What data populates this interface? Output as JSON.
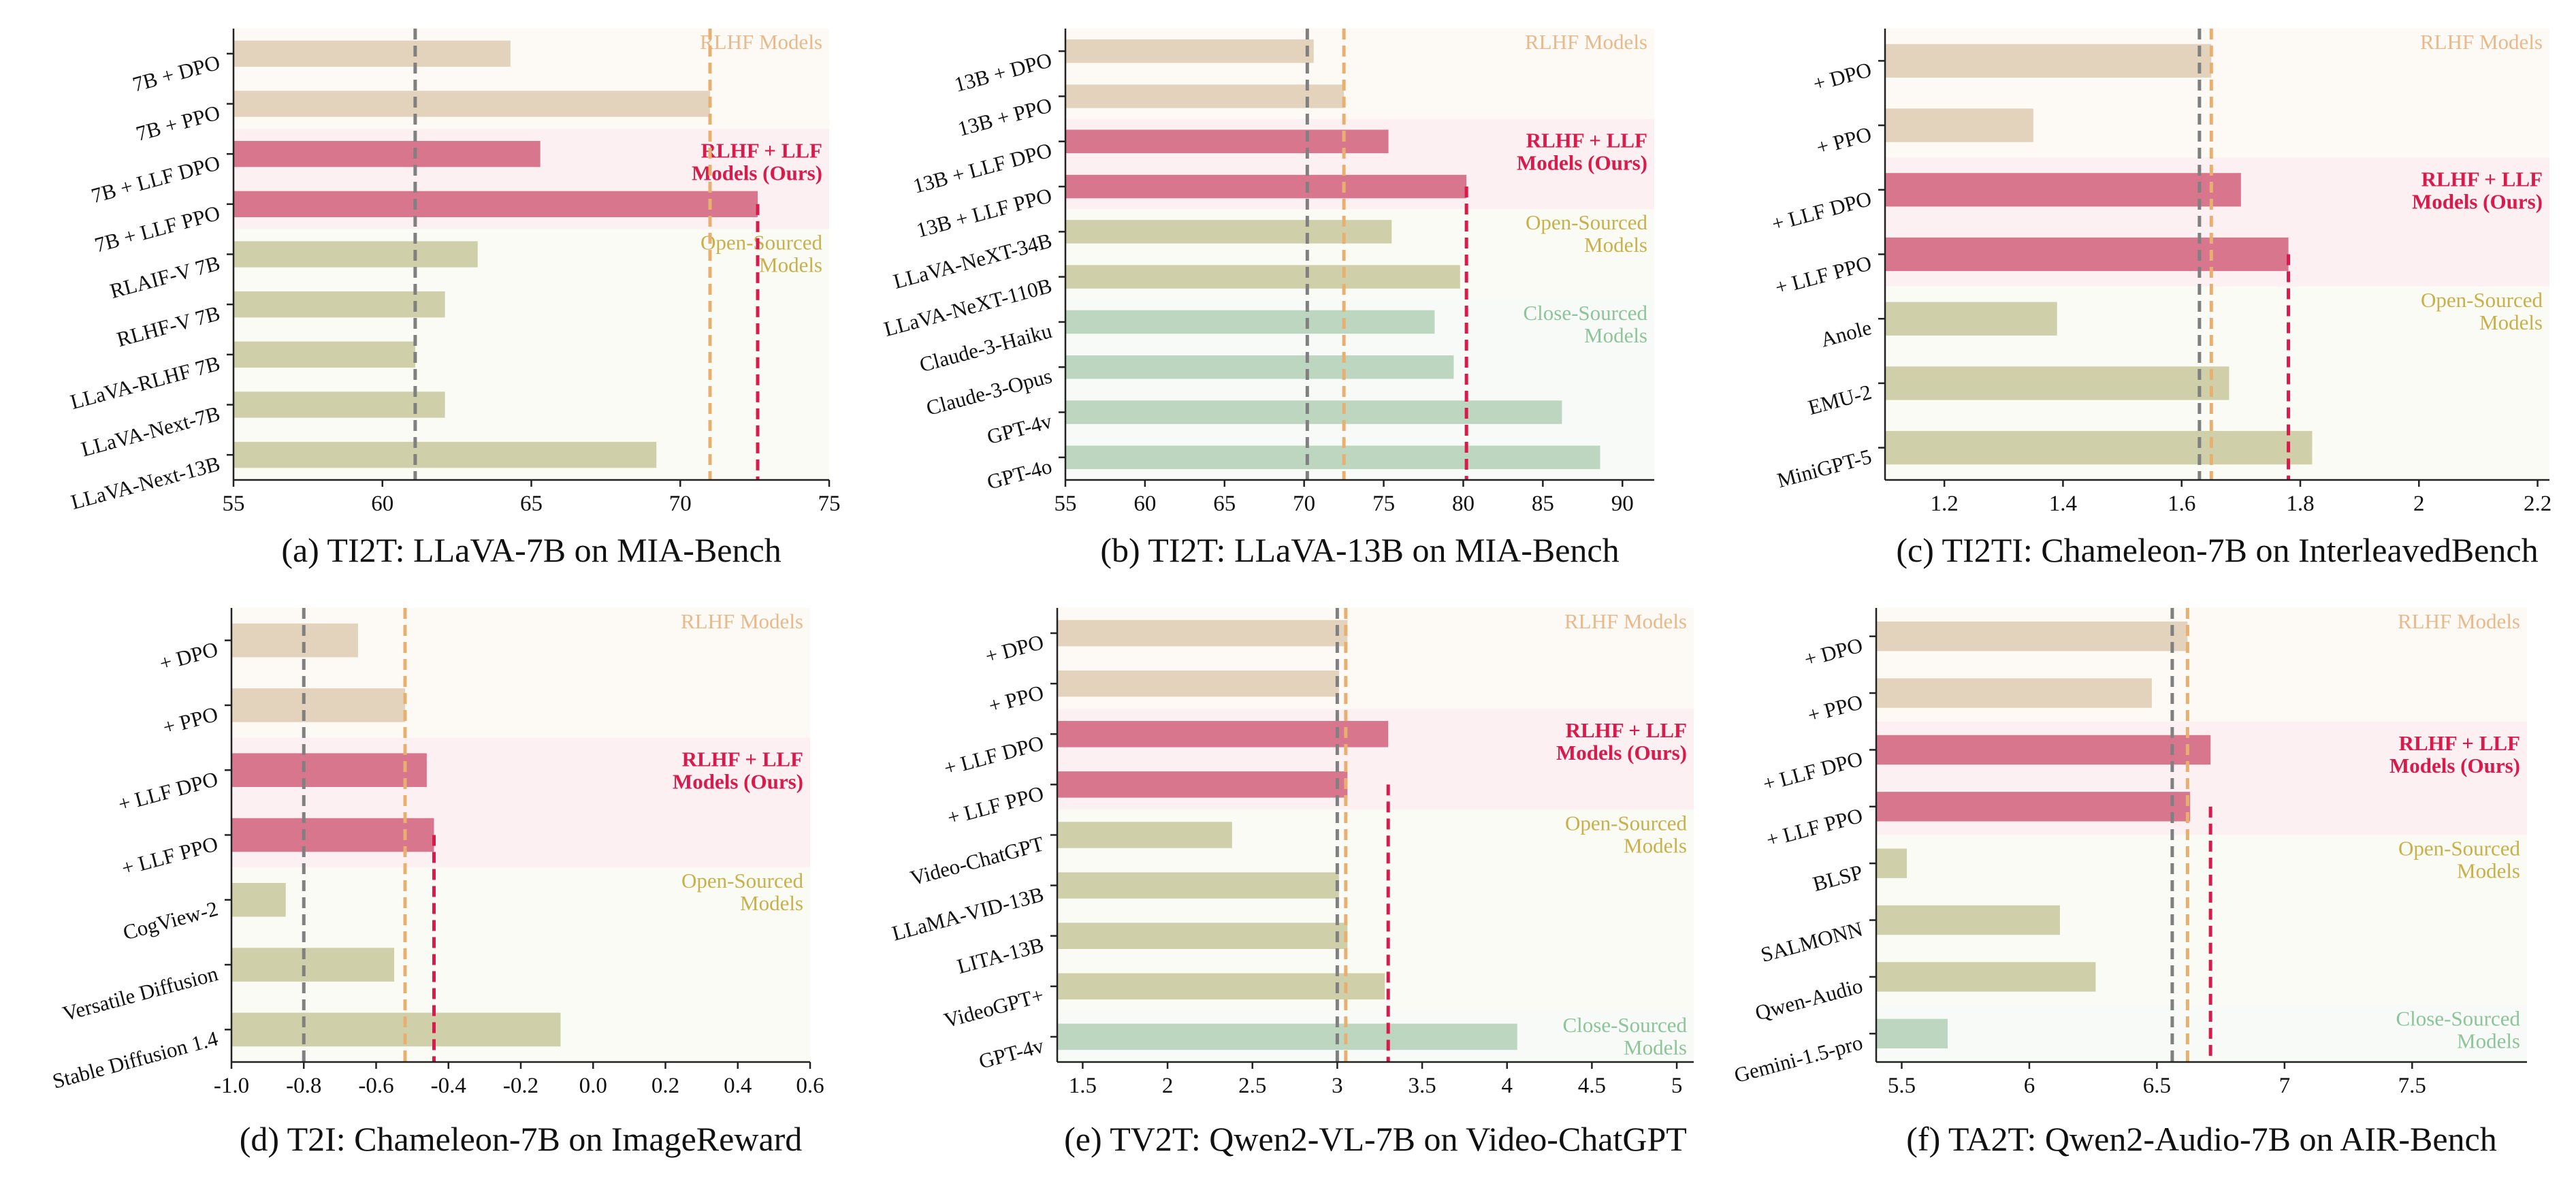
{
  "colors": {
    "rlhf": "#e3d3bd",
    "llf": "#d8768d",
    "open": "#cfcfaa",
    "close": "#bcd6bf",
    "rlhf_text": "#e8b98a",
    "llf_text": "#d81b4a",
    "open_text": "#c8b04a",
    "close_text": "#8ec49a",
    "ref_line": "#808080"
  },
  "chart_data": [
    {
      "type": "bar",
      "orientation": "horizontal",
      "caption": "(a) TI2T: LLaVA-7B on MIA-Bench",
      "categories": [
        "7B + DPO",
        "7B + PPO",
        "7B + LLF DPO",
        "7B + LLF PPO",
        "RLAIF-V 7B",
        "RLHF-V 7B",
        "LLaVA-RLHF 7B",
        "LLaVA-Next-7B",
        "LLaVA-Next-13B"
      ],
      "values": [
        64.3,
        71.0,
        65.3,
        72.6,
        63.2,
        62.1,
        61.1,
        62.1,
        69.2
      ],
      "groups": [
        "rlhf",
        "rlhf",
        "llf",
        "llf",
        "open",
        "open",
        "open",
        "open",
        "open"
      ],
      "xlim": [
        55,
        75
      ],
      "xticks": [
        55,
        60,
        65,
        70,
        75
      ],
      "reference_lines": [
        {
          "value": 61.1,
          "group": "ref"
        },
        {
          "value": 71.0,
          "group": "rlhf"
        },
        {
          "value": 72.6,
          "group": "llf"
        }
      ],
      "regions": [
        {
          "group": "rlhf",
          "label": "RLHF Models"
        },
        {
          "group": "llf",
          "label": "RLHF + LLF\nModels (Ours)"
        },
        {
          "group": "open",
          "label": "Open-Sourced\nModels"
        }
      ]
    },
    {
      "type": "bar",
      "orientation": "horizontal",
      "caption": "(b) TI2T: LLaVA-13B on MIA-Bench",
      "categories": [
        "13B + DPO",
        "13B + PPO",
        "13B + LLF DPO",
        "13B + LLF PPO",
        "LLaVA-NeXT-34B",
        "LLaVA-NeXT-110B",
        "Claude-3-Haiku",
        "Claude-3-Opus",
        "GPT-4v",
        "GPT-4o"
      ],
      "values": [
        70.6,
        72.5,
        75.3,
        80.2,
        75.5,
        79.8,
        78.2,
        79.4,
        86.2,
        88.6
      ],
      "groups": [
        "rlhf",
        "rlhf",
        "llf",
        "llf",
        "open",
        "open",
        "close",
        "close",
        "close",
        "close"
      ],
      "xlim": [
        55,
        92
      ],
      "xticks": [
        55,
        60,
        65,
        70,
        75,
        80,
        85,
        90
      ],
      "reference_lines": [
        {
          "value": 70.2,
          "group": "ref"
        },
        {
          "value": 72.5,
          "group": "rlhf"
        },
        {
          "value": 80.2,
          "group": "llf"
        }
      ],
      "regions": [
        {
          "group": "rlhf",
          "label": "RLHF Models"
        },
        {
          "group": "llf",
          "label": "RLHF + LLF\nModels (Ours)"
        },
        {
          "group": "open",
          "label": "Open-Sourced\nModels"
        },
        {
          "group": "close",
          "label": "Close-Sourced\nModels"
        }
      ]
    },
    {
      "type": "bar",
      "orientation": "horizontal",
      "caption": "(c) TI2TI: Chameleon-7B on InterleavedBench",
      "categories": [
        "+ DPO",
        "+ PPO",
        "+ LLF DPO",
        "+ LLF PPO",
        "Anole",
        "EMU-2",
        "MiniGPT-5"
      ],
      "values": [
        1.65,
        1.35,
        1.7,
        1.78,
        1.39,
        1.68,
        1.82
      ],
      "groups": [
        "rlhf",
        "rlhf",
        "llf",
        "llf",
        "open",
        "open",
        "open"
      ],
      "xlim": [
        1.1,
        2.22
      ],
      "xticks": [
        1.2,
        1.4,
        1.6,
        1.8,
        2.0,
        2.2
      ],
      "reference_lines": [
        {
          "value": 1.63,
          "group": "ref"
        },
        {
          "value": 1.65,
          "group": "rlhf"
        },
        {
          "value": 1.78,
          "group": "llf"
        }
      ],
      "regions": [
        {
          "group": "rlhf",
          "label": "RLHF Models"
        },
        {
          "group": "llf",
          "label": "RLHF + LLF\nModels (Ours)"
        },
        {
          "group": "open",
          "label": "Open-Sourced\nModels"
        }
      ]
    },
    {
      "type": "bar",
      "orientation": "horizontal",
      "caption": "(d) T2I: Chameleon-7B on ImageReward",
      "categories": [
        "+ DPO",
        "+ PPO",
        "+ LLF DPO",
        "+ LLF PPO",
        "CogView-2",
        "Versatile Diffusion",
        "Stable Diffusion 1.4"
      ],
      "values": [
        -0.65,
        -0.52,
        -0.46,
        -0.44,
        -0.85,
        -0.55,
        -0.09
      ],
      "groups": [
        "rlhf",
        "rlhf",
        "llf",
        "llf",
        "open",
        "open",
        "open"
      ],
      "xlim": [
        -1.0,
        0.6
      ],
      "xticks": [
        -1.0,
        -0.8,
        -0.6,
        -0.4,
        -0.2,
        0.0,
        0.2,
        0.4,
        0.6
      ],
      "tick_labels": [
        "-1.0",
        "-0.8",
        "-0.6",
        "-0.4",
        "-0.2",
        "0.0",
        "0.2",
        "0.4",
        "0.6"
      ],
      "reference_lines": [
        {
          "value": -0.8,
          "group": "ref"
        },
        {
          "value": -0.52,
          "group": "rlhf"
        },
        {
          "value": -0.44,
          "group": "llf"
        }
      ],
      "regions": [
        {
          "group": "rlhf",
          "label": "RLHF Models"
        },
        {
          "group": "llf",
          "label": "RLHF + LLF\nModels (Ours)"
        },
        {
          "group": "open",
          "label": "Open-Sourced\nModels"
        }
      ]
    },
    {
      "type": "bar",
      "orientation": "horizontal",
      "caption": "(e) TV2T: Qwen2-VL-7B on Video-ChatGPT",
      "categories": [
        "+ DPO",
        "+ PPO",
        "+ LLF DPO",
        "+ LLF PPO",
        "Video-ChatGPT",
        "LLaMA-VID-13B",
        "LITA-13B",
        "VideoGPT+",
        "GPT-4v"
      ],
      "values": [
        3.06,
        3.01,
        3.3,
        3.06,
        2.38,
        3.01,
        3.06,
        3.28,
        4.06
      ],
      "groups": [
        "rlhf",
        "rlhf",
        "llf",
        "llf",
        "open",
        "open",
        "open",
        "open",
        "close"
      ],
      "xlim": [
        1.35,
        5.1
      ],
      "xticks": [
        1.5,
        2.0,
        2.5,
        3.0,
        3.5,
        4.0,
        4.5,
        5.0
      ],
      "reference_lines": [
        {
          "value": 3.0,
          "group": "ref"
        },
        {
          "value": 3.05,
          "group": "rlhf"
        },
        {
          "value": 3.3,
          "group": "llf"
        }
      ],
      "regions": [
        {
          "group": "rlhf",
          "label": "RLHF Models"
        },
        {
          "group": "llf",
          "label": "RLHF + LLF\nModels (Ours)"
        },
        {
          "group": "open",
          "label": "Open-Sourced\nModels"
        },
        {
          "group": "close",
          "label": "Close-Sourced\nModels"
        }
      ]
    },
    {
      "type": "bar",
      "orientation": "horizontal",
      "caption": "(f) TA2T: Qwen2-Audio-7B on AIR-Bench",
      "categories": [
        "+ DPO",
        "+ PPO",
        "+ LLF DPO",
        "+ LLF PPO",
        "BLSP",
        "SALMONN",
        "Qwen-Audio",
        "Gemini-1.5-pro"
      ],
      "values": [
        6.62,
        6.48,
        6.71,
        6.63,
        5.52,
        6.12,
        6.26,
        5.68
      ],
      "groups": [
        "rlhf",
        "rlhf",
        "llf",
        "llf",
        "open",
        "open",
        "open",
        "close"
      ],
      "xlim": [
        5.4,
        7.95
      ],
      "xticks": [
        5.5,
        6.0,
        6.5,
        7.0,
        7.5
      ],
      "reference_lines": [
        {
          "value": 6.56,
          "group": "ref"
        },
        {
          "value": 6.62,
          "group": "rlhf"
        },
        {
          "value": 6.71,
          "group": "llf"
        }
      ],
      "regions": [
        {
          "group": "rlhf",
          "label": "RLHF Models"
        },
        {
          "group": "llf",
          "label": "RLHF + LLF\nModels (Ours)"
        },
        {
          "group": "open",
          "label": "Open-Sourced\nModels"
        },
        {
          "group": "close",
          "label": "Close-Sourced\nModels"
        }
      ]
    }
  ]
}
